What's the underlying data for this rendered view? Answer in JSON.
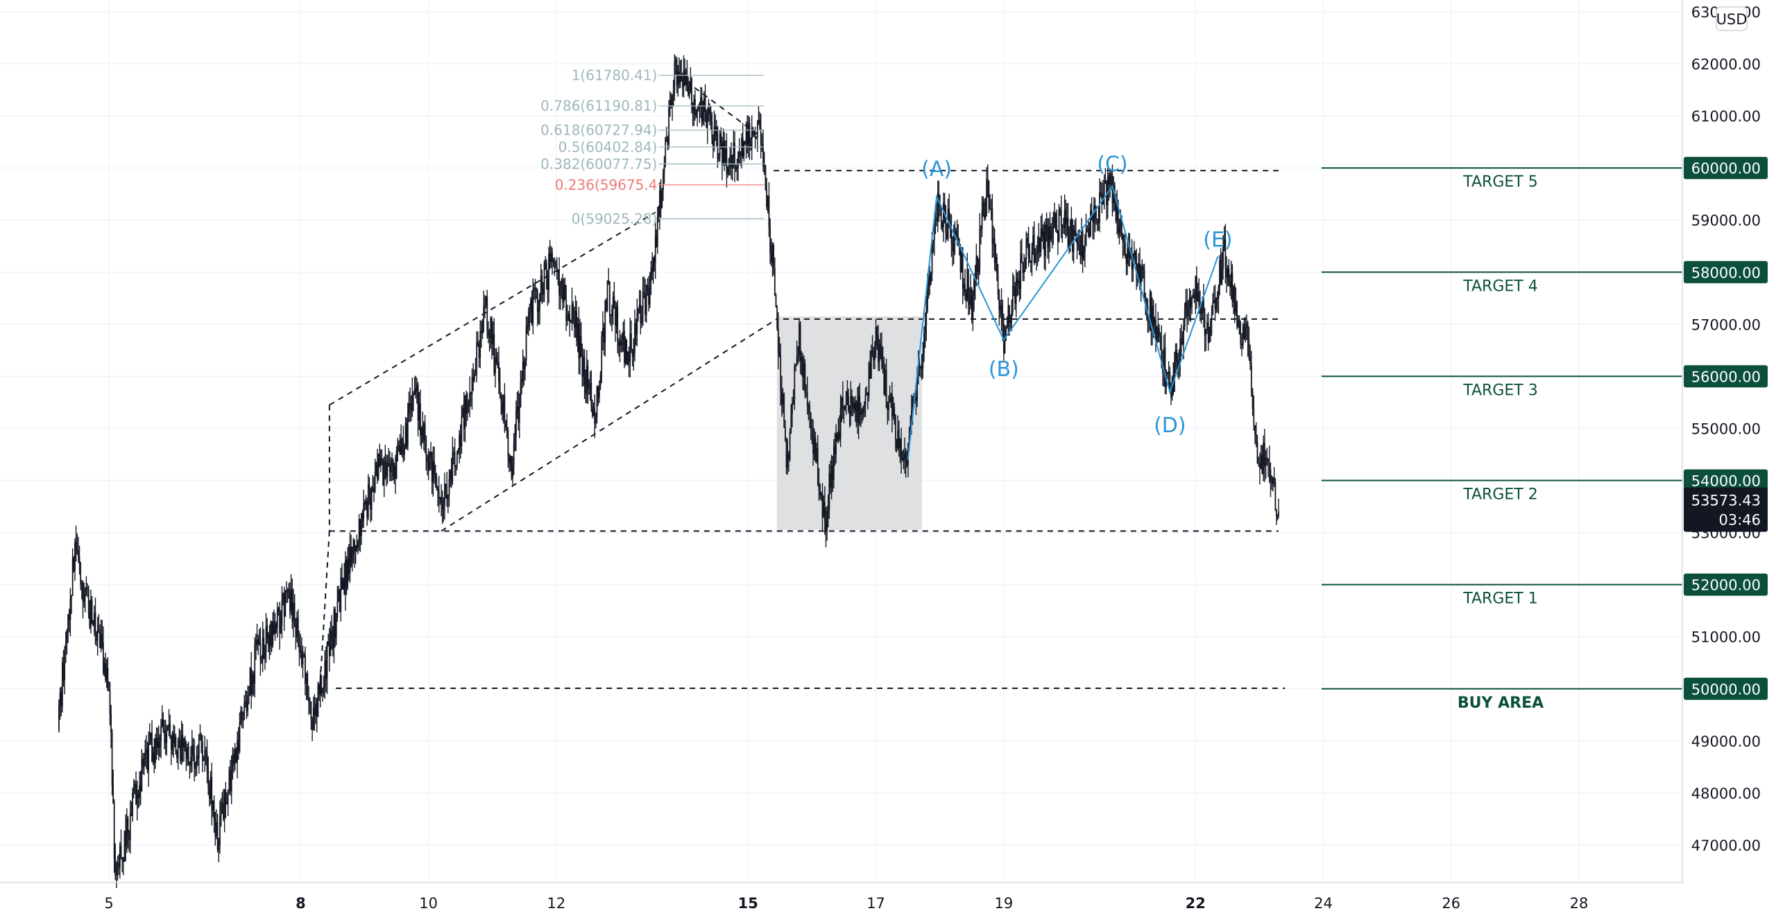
{
  "currency": {
    "label": "USD"
  },
  "colors": {
    "candle": "#131722",
    "target_line": "#0b4f3c",
    "target_tag": "#0b4f3c",
    "wave": "#2b95d6",
    "fib_text": "#9fb7bd",
    "fib_red": "#ef7a7a",
    "box": "#d9dadd",
    "grid": "#f0f3fa",
    "price_tag_bg": "#131722"
  },
  "price_axis": {
    "ticks": [
      {
        "value": 47000,
        "label": "47000.00"
      },
      {
        "value": 48000,
        "label": "48000.00"
      },
      {
        "value": 49000,
        "label": "49000.00"
      },
      {
        "value": 51000,
        "label": "51000.00"
      },
      {
        "value": 53000,
        "label": "53000.00"
      },
      {
        "value": 55000,
        "label": "55000.00"
      },
      {
        "value": 57000,
        "label": "57000.00"
      },
      {
        "value": 59000,
        "label": "59000.00"
      },
      {
        "value": 61000,
        "label": "61000.00"
      },
      {
        "value": 62000,
        "label": "62000.00"
      },
      {
        "value": 63000,
        "label": "63000.00"
      }
    ],
    "highlight_tags": [
      {
        "value": 60000,
        "label": "60000.00"
      },
      {
        "value": 58000,
        "label": "58000.00"
      },
      {
        "value": 56000,
        "label": "56000.00"
      },
      {
        "value": 54000,
        "label": "54000.00"
      },
      {
        "value": 52000,
        "label": "52000.00"
      },
      {
        "value": 50000,
        "label": "50000.00"
      }
    ],
    "current_price": {
      "value": 53573.43,
      "label": "53573.43",
      "countdown": "03:46"
    }
  },
  "time_axis": {
    "ticks": [
      {
        "day": 5,
        "label": "5",
        "bold": false
      },
      {
        "day": 8,
        "label": "8",
        "bold": true
      },
      {
        "day": 10,
        "label": "10",
        "bold": false
      },
      {
        "day": 12,
        "label": "12",
        "bold": false
      },
      {
        "day": 15,
        "label": "15",
        "bold": true
      },
      {
        "day": 17,
        "label": "17",
        "bold": false
      },
      {
        "day": 19,
        "label": "19",
        "bold": false
      },
      {
        "day": 22,
        "label": "22",
        "bold": true
      },
      {
        "day": 24,
        "label": "24",
        "bold": false
      },
      {
        "day": 26,
        "label": "26",
        "bold": false
      },
      {
        "day": 28,
        "label": "28",
        "bold": false
      }
    ]
  },
  "targets": [
    {
      "label": "TARGET 5",
      "price": 60000,
      "bold": false
    },
    {
      "label": "TARGET 4",
      "price": 58000,
      "bold": false
    },
    {
      "label": "TARGET 3",
      "price": 56000,
      "bold": false
    },
    {
      "label": "TARGET 2",
      "price": 54000,
      "bold": false
    },
    {
      "label": "TARGET 1",
      "price": 52000,
      "bold": false
    },
    {
      "label": "BUY AREA",
      "price": 50000,
      "bold": true
    }
  ],
  "fib_levels": [
    {
      "label": "1(61780.41)",
      "price": 61780.41,
      "red": false
    },
    {
      "label": "0.786(61190.81)",
      "price": 61190.81,
      "red": false
    },
    {
      "label": "0.618(60727.94)",
      "price": 60727.94,
      "red": false
    },
    {
      "label": "0.5(60402.84)",
      "price": 60402.84,
      "red": false
    },
    {
      "label": "0.382(60077.75)",
      "price": 60077.75,
      "red": false
    },
    {
      "label": "0.236(59675.4",
      "price": 59675.4,
      "red": true
    },
    {
      "label": "0(59025.28)",
      "price": 59025.28,
      "red": false
    }
  ],
  "waves": [
    {
      "label": "(A)",
      "day": 17.95,
      "price": 59450
    },
    {
      "label": "(B)",
      "day": 19.0,
      "price": 56700
    },
    {
      "label": "(C)",
      "day": 20.7,
      "price": 59650
    },
    {
      "label": "(D)",
      "day": 21.6,
      "price": 55700
    },
    {
      "label": "(E)",
      "day": 22.35,
      "price": 58300
    }
  ],
  "wave_start": {
    "day": 17.5,
    "price": 54400
  },
  "chart_data": {
    "type": "candlestick",
    "y_scale": "linear",
    "ylim": [
      46300,
      63200
    ],
    "x_range_days": [
      4.2,
      29.1
    ],
    "grid": true,
    "path": [
      [
        4.2,
        49200
      ],
      [
        4.45,
        52600
      ],
      [
        4.7,
        51500
      ],
      [
        5.0,
        50200
      ],
      [
        5.1,
        46350
      ],
      [
        5.55,
        48600
      ],
      [
        5.85,
        49200
      ],
      [
        6.1,
        48800
      ],
      [
        6.5,
        48800
      ],
      [
        6.7,
        47200
      ],
      [
        7.3,
        50600
      ],
      [
        7.6,
        51300
      ],
      [
        7.85,
        51700
      ],
      [
        8.2,
        49400
      ],
      [
        8.7,
        52200
      ],
      [
        9.2,
        54200
      ],
      [
        9.5,
        54300
      ],
      [
        9.8,
        55600
      ],
      [
        10.2,
        53300
      ],
      [
        10.5,
        55000
      ],
      [
        10.9,
        57300
      ],
      [
        11.3,
        54400
      ],
      [
        11.6,
        57300
      ],
      [
        11.9,
        58100
      ],
      [
        12.3,
        57000
      ],
      [
        12.6,
        55100
      ],
      [
        12.8,
        57600
      ],
      [
        13.1,
        56300
      ],
      [
        13.5,
        57900
      ],
      [
        13.6,
        59200
      ],
      [
        13.85,
        61780
      ],
      [
        14.1,
        61500
      ],
      [
        14.4,
        60800
      ],
      [
        14.7,
        60100
      ],
      [
        14.9,
        60500
      ],
      [
        15.2,
        60600
      ],
      [
        15.4,
        58000
      ],
      [
        15.6,
        54300
      ],
      [
        15.8,
        56800
      ],
      [
        16.0,
        55000
      ],
      [
        16.2,
        53200
      ],
      [
        16.5,
        55700
      ],
      [
        16.8,
        55200
      ],
      [
        17.0,
        56800
      ],
      [
        17.2,
        55500
      ],
      [
        17.45,
        54300
      ],
      [
        17.7,
        56200
      ],
      [
        17.95,
        59400
      ],
      [
        18.2,
        58700
      ],
      [
        18.5,
        57400
      ],
      [
        18.75,
        59700
      ],
      [
        19.0,
        56700
      ],
      [
        19.3,
        58300
      ],
      [
        19.6,
        58500
      ],
      [
        19.9,
        59000
      ],
      [
        20.2,
        58400
      ],
      [
        20.5,
        59300
      ],
      [
        20.7,
        59600
      ],
      [
        20.9,
        58400
      ],
      [
        21.2,
        57700
      ],
      [
        21.45,
        56500
      ],
      [
        21.6,
        55700
      ],
      [
        21.85,
        57300
      ],
      [
        22.0,
        57800
      ],
      [
        22.2,
        56700
      ],
      [
        22.45,
        58400
      ],
      [
        22.65,
        57000
      ],
      [
        22.8,
        56800
      ],
      [
        22.95,
        54400
      ],
      [
        23.1,
        54500
      ],
      [
        23.25,
        53700
      ],
      [
        23.3,
        53573
      ]
    ]
  }
}
